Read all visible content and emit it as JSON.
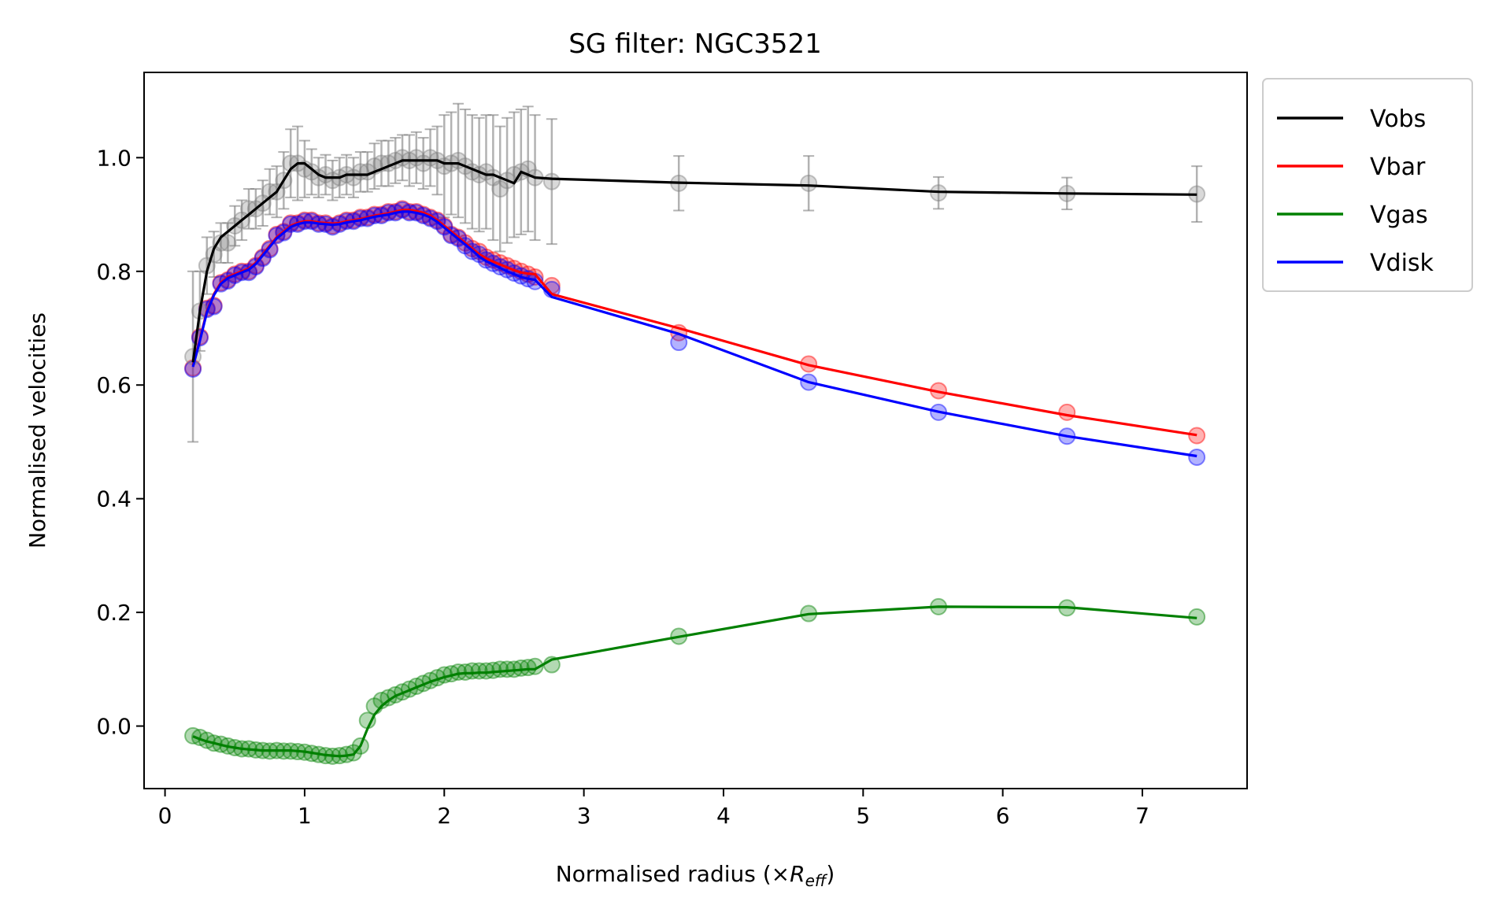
{
  "chart_data": {
    "type": "line",
    "title": "SG filter: NGC3521",
    "xlabel": {
      "prefix": "Normalised radius (×",
      "var": "R",
      "sub": "eff",
      "suffix": ")"
    },
    "ylabel": "Normalised velocities",
    "xlim": [
      -0.15,
      7.75
    ],
    "ylim": [
      -0.11,
      1.15
    ],
    "xticks": [
      0,
      1,
      2,
      3,
      4,
      5,
      6,
      7
    ],
    "yticks": [
      0.0,
      0.2,
      0.4,
      0.6,
      0.8,
      1.0
    ],
    "xtick_labels": [
      "0",
      "1",
      "2",
      "3",
      "4",
      "5",
      "6",
      "7"
    ],
    "ytick_labels": [
      "0.0",
      "0.2",
      "0.4",
      "0.6",
      "0.8",
      "1.0"
    ],
    "legend_position": "outside-upper-right",
    "grid": false,
    "x": [
      0.2,
      0.25,
      0.3,
      0.35,
      0.4,
      0.45,
      0.5,
      0.55,
      0.6,
      0.65,
      0.7,
      0.75,
      0.8,
      0.85,
      0.9,
      0.95,
      1.0,
      1.05,
      1.1,
      1.15,
      1.2,
      1.25,
      1.3,
      1.35,
      1.4,
      1.45,
      1.5,
      1.55,
      1.6,
      1.65,
      1.7,
      1.75,
      1.8,
      1.85,
      1.9,
      1.95,
      2.0,
      2.05,
      2.1,
      2.15,
      2.2,
      2.25,
      2.3,
      2.35,
      2.4,
      2.45,
      2.5,
      2.55,
      2.6,
      2.65,
      2.77,
      3.68,
      4.61,
      5.54,
      6.46,
      7.39
    ],
    "series": [
      {
        "name": "Vobs",
        "color": "#000000",
        "marker_color": "#808080",
        "line": [
          0.64,
          0.73,
          0.8,
          0.84,
          0.86,
          0.87,
          0.88,
          0.89,
          0.9,
          0.91,
          0.92,
          0.93,
          0.94,
          0.96,
          0.98,
          0.99,
          0.99,
          0.98,
          0.97,
          0.965,
          0.965,
          0.965,
          0.97,
          0.97,
          0.97,
          0.97,
          0.975,
          0.98,
          0.985,
          0.99,
          0.995,
          0.995,
          0.995,
          0.995,
          0.995,
          0.995,
          0.99,
          0.99,
          0.99,
          0.985,
          0.98,
          0.975,
          0.97,
          0.97,
          0.965,
          0.96,
          0.955,
          0.975,
          0.97,
          0.965,
          0.963,
          0.956,
          0.951,
          0.94,
          0.937,
          0.935
        ],
        "points": [
          0.65,
          0.73,
          0.81,
          0.83,
          0.85,
          0.85,
          0.88,
          0.89,
          0.91,
          0.91,
          0.92,
          0.94,
          0.94,
          0.96,
          0.99,
          0.99,
          0.98,
          0.975,
          0.965,
          0.97,
          0.96,
          0.965,
          0.97,
          0.965,
          0.975,
          0.975,
          0.985,
          0.99,
          0.99,
          0.995,
          1.0,
          0.995,
          1.0,
          0.99,
          1.0,
          0.995,
          0.985,
          0.99,
          0.995,
          0.985,
          0.975,
          0.97,
          0.975,
          0.965,
          0.945,
          0.96,
          0.97,
          0.975,
          0.98,
          0.965,
          0.958,
          0.955,
          0.955,
          0.938,
          0.937,
          0.936
        ],
        "errors": [
          0.15,
          0.07,
          0.05,
          0.04,
          0.035,
          0.035,
          0.035,
          0.035,
          0.035,
          0.035,
          0.04,
          0.04,
          0.045,
          0.05,
          0.06,
          0.065,
          0.05,
          0.04,
          0.035,
          0.035,
          0.035,
          0.035,
          0.035,
          0.035,
          0.035,
          0.035,
          0.04,
          0.04,
          0.04,
          0.04,
          0.04,
          0.045,
          0.045,
          0.045,
          0.05,
          0.06,
          0.09,
          0.09,
          0.1,
          0.1,
          0.1,
          0.1,
          0.1,
          0.11,
          0.11,
          0.11,
          0.11,
          0.11,
          0.11,
          0.11,
          0.11,
          0.048,
          0.048,
          0.028,
          0.028,
          0.049
        ]
      },
      {
        "name": "Vbar",
        "color": "#ff0000",
        "marker_color": "#ff0000",
        "line": [
          0.635,
          0.68,
          0.73,
          0.76,
          0.78,
          0.79,
          0.795,
          0.8,
          0.805,
          0.815,
          0.83,
          0.845,
          0.86,
          0.87,
          0.88,
          0.885,
          0.888,
          0.888,
          0.886,
          0.885,
          0.884,
          0.885,
          0.888,
          0.89,
          0.892,
          0.895,
          0.898,
          0.9,
          0.902,
          0.905,
          0.908,
          0.908,
          0.906,
          0.903,
          0.898,
          0.89,
          0.88,
          0.87,
          0.86,
          0.85,
          0.84,
          0.83,
          0.823,
          0.817,
          0.812,
          0.807,
          0.802,
          0.798,
          0.796,
          0.795,
          0.76,
          0.7,
          0.635,
          0.588,
          0.547,
          0.512
        ],
        "points": [
          0.63,
          0.685,
          0.735,
          0.74,
          0.78,
          0.785,
          0.795,
          0.8,
          0.8,
          0.81,
          0.825,
          0.84,
          0.865,
          0.87,
          0.885,
          0.885,
          0.89,
          0.89,
          0.885,
          0.885,
          0.88,
          0.885,
          0.89,
          0.89,
          0.895,
          0.895,
          0.9,
          0.9,
          0.905,
          0.905,
          0.91,
          0.905,
          0.905,
          0.9,
          0.895,
          0.89,
          0.88,
          0.865,
          0.86,
          0.85,
          0.84,
          0.835,
          0.825,
          0.82,
          0.815,
          0.81,
          0.805,
          0.8,
          0.795,
          0.79,
          0.775,
          0.692,
          0.637,
          0.59,
          0.552,
          0.511
        ]
      },
      {
        "name": "Vgas",
        "color": "#008000",
        "marker_color": "#008000",
        "line": [
          -0.018,
          -0.023,
          -0.027,
          -0.03,
          -0.033,
          -0.036,
          -0.038,
          -0.04,
          -0.041,
          -0.042,
          -0.043,
          -0.043,
          -0.043,
          -0.043,
          -0.043,
          -0.044,
          -0.045,
          -0.047,
          -0.049,
          -0.051,
          -0.052,
          -0.053,
          -0.052,
          -0.05,
          -0.035,
          -0.005,
          0.02,
          0.035,
          0.045,
          0.053,
          0.058,
          0.063,
          0.068,
          0.073,
          0.078,
          0.082,
          0.086,
          0.089,
          0.092,
          0.093,
          0.093,
          0.094,
          0.094,
          0.095,
          0.096,
          0.097,
          0.098,
          0.099,
          0.1,
          0.1,
          0.117,
          0.157,
          0.197,
          0.21,
          0.209,
          0.19
        ],
        "points": [
          -0.017,
          -0.02,
          -0.025,
          -0.03,
          -0.032,
          -0.035,
          -0.038,
          -0.04,
          -0.04,
          -0.042,
          -0.043,
          -0.044,
          -0.043,
          -0.044,
          -0.044,
          -0.045,
          -0.046,
          -0.048,
          -0.05,
          -0.052,
          -0.053,
          -0.052,
          -0.05,
          -0.047,
          -0.035,
          0.01,
          0.035,
          0.045,
          0.05,
          0.055,
          0.06,
          0.065,
          0.07,
          0.075,
          0.08,
          0.085,
          0.09,
          0.092,
          0.095,
          0.095,
          0.097,
          0.097,
          0.097,
          0.098,
          0.1,
          0.1,
          0.1,
          0.102,
          0.103,
          0.105,
          0.108,
          0.158,
          0.198,
          0.21,
          0.208,
          0.192
        ]
      },
      {
        "name": "Vdisk",
        "color": "#0000ff",
        "marker_color": "#0000ff",
        "line": [
          0.632,
          0.678,
          0.728,
          0.758,
          0.778,
          0.788,
          0.793,
          0.798,
          0.803,
          0.813,
          0.828,
          0.843,
          0.858,
          0.868,
          0.878,
          0.883,
          0.886,
          0.886,
          0.884,
          0.883,
          0.882,
          0.883,
          0.886,
          0.888,
          0.89,
          0.893,
          0.896,
          0.898,
          0.9,
          0.903,
          0.905,
          0.905,
          0.903,
          0.9,
          0.895,
          0.887,
          0.877,
          0.867,
          0.857,
          0.847,
          0.837,
          0.826,
          0.818,
          0.812,
          0.806,
          0.8,
          0.795,
          0.79,
          0.787,
          0.785,
          0.755,
          0.69,
          0.605,
          0.553,
          0.51,
          0.475
        ],
        "points": [
          0.628,
          0.683,
          0.733,
          0.738,
          0.778,
          0.783,
          0.793,
          0.798,
          0.798,
          0.808,
          0.823,
          0.838,
          0.863,
          0.868,
          0.883,
          0.883,
          0.888,
          0.888,
          0.883,
          0.883,
          0.878,
          0.883,
          0.888,
          0.888,
          0.893,
          0.893,
          0.898,
          0.898,
          0.903,
          0.903,
          0.908,
          0.903,
          0.903,
          0.898,
          0.893,
          0.888,
          0.878,
          0.863,
          0.858,
          0.845,
          0.835,
          0.83,
          0.82,
          0.814,
          0.808,
          0.803,
          0.797,
          0.792,
          0.787,
          0.782,
          0.768,
          0.675,
          0.605,
          0.552,
          0.51,
          0.473
        ]
      }
    ]
  }
}
